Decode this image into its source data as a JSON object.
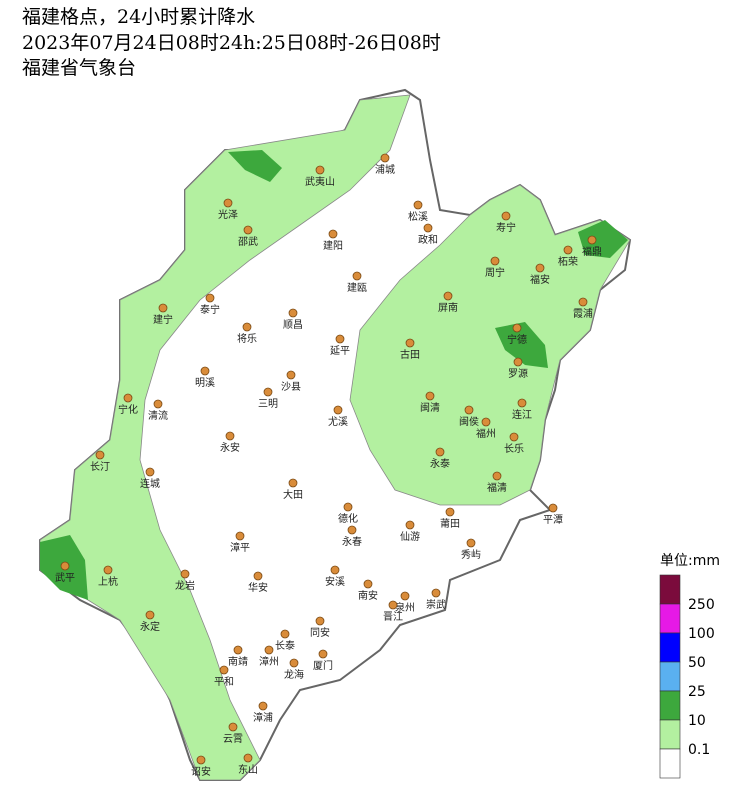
{
  "header": {
    "title": "福建格点，24小时累计降水",
    "subtitle": "2023年07月24日08时24h:25日08时-26日08时",
    "source": "福建省气象台"
  },
  "legend": {
    "unit": "单位:mm",
    "labels": [
      "250",
      "100",
      "50",
      "25",
      "10",
      "0.1"
    ]
  },
  "cities": [
    "浦城",
    "武夷山",
    "光泽",
    "邵武",
    "松溪",
    "政和",
    "建阳",
    "寿宁",
    "福鼎",
    "周宁",
    "柘荣",
    "福安",
    "建瓯",
    "泰宁",
    "建宁",
    "顺昌",
    "将乐",
    "屏南",
    "霞浦",
    "宁德",
    "古田",
    "延平",
    "明溪",
    "沙县",
    "三明",
    "罗源",
    "宁化",
    "清流",
    "闽清",
    "闽侯",
    "连江",
    "尤溪",
    "福州",
    "长乐",
    "永安",
    "长汀",
    "连城",
    "永泰",
    "福清",
    "大田",
    "平潭",
    "德化",
    "莆田",
    "仙游",
    "永春",
    "秀屿",
    "漳平",
    "武平",
    "上杭",
    "龙岩",
    "华安",
    "安溪",
    "南安",
    "泉州",
    "崇武",
    "晋江",
    "永定",
    "同安",
    "长泰",
    "南靖",
    "漳州",
    "厦门",
    "龙海",
    "平和",
    "漳浦",
    "云霄",
    "诏安",
    "东山"
  ]
}
